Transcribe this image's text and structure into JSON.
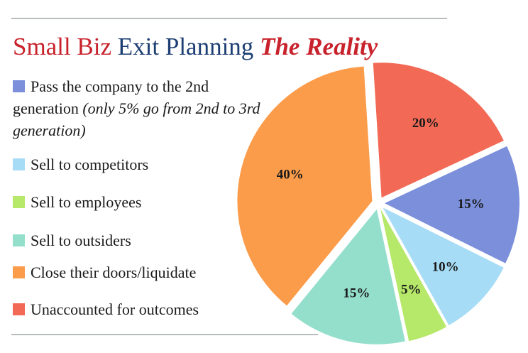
{
  "title": {
    "part1": "Small Biz",
    "part2": "Exit Planning",
    "part3": "The Reality"
  },
  "legend": {
    "items": [
      {
        "label": "Pass the company to the 2nd generation",
        "note": "(only 5% go from 2nd to 3rd generation)",
        "color": "#7b8fdb"
      },
      {
        "label": "Sell to competitors",
        "color": "#a6dcf5"
      },
      {
        "label": "Sell to employees",
        "color": "#b6e86a"
      },
      {
        "label": "Sell to outsiders",
        "color": "#94dfcb"
      },
      {
        "label": "Close their doors/liquidate",
        "color": "#fb9c4b"
      },
      {
        "label": "Unaccounted for outcomes",
        "color": "#f26a55"
      }
    ]
  },
  "chart_data": {
    "type": "pie",
    "categories": [
      "Pass the company to the 2nd generation",
      "Sell to competitors",
      "Sell to employees",
      "Sell to outsiders",
      "Close their doors/liquidate",
      "Unaccounted for outcomes"
    ],
    "values": [
      15,
      10,
      5,
      15,
      40,
      20
    ],
    "labels": [
      "15%",
      "10%",
      "5%",
      "15%",
      "40%",
      "20%"
    ],
    "colors": [
      "#7b8fdb",
      "#a6dcf5",
      "#b6e86a",
      "#94dfcb",
      "#fb9c4b",
      "#f26a55"
    ],
    "exploded": true,
    "legend_position": "left"
  }
}
